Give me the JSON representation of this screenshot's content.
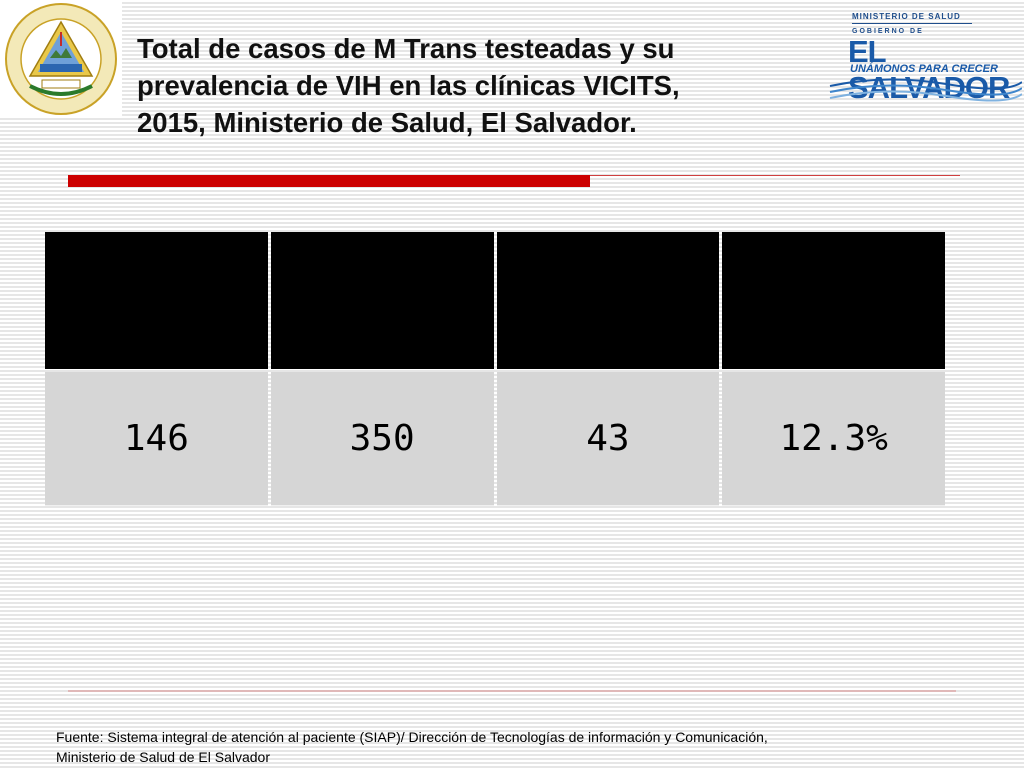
{
  "title": {
    "line1": "Total de casos de M Trans testeadas  y su",
    "line2": "prevalencia de VIH en las clínicas VICITS,",
    "line3": "2015, Ministerio de Salud, El Salvador."
  },
  "seal": {
    "ring_text": "REPUBLICA DE EL SALVADOR EN LA AMERICA CENTRAL",
    "ribbon_text": "Dios Union Libertad"
  },
  "gov_logo": {
    "ministry": "MINISTERIO DE SALUD",
    "gobierno": "GOBIERNO DE",
    "name": "EL SALVADOR",
    "slogan": "UNÁMONOS PARA CRECER"
  },
  "table": {
    "headers": [
      "",
      "",
      "",
      ""
    ],
    "rows": [
      [
        "146",
        "350",
        "43",
        "12.3%"
      ]
    ]
  },
  "source": {
    "line1": "Fuente: Sistema integral de atención al paciente (SIAP)/ Dirección de Tecnologías de información y Comunicación,",
    "line2": "Ministerio de Salud de El Salvador"
  },
  "colors": {
    "accent_red": "#cc0000",
    "brand_blue": "#1a5aa8",
    "header_black": "#000000",
    "cell_gray": "#d6d6d6"
  }
}
